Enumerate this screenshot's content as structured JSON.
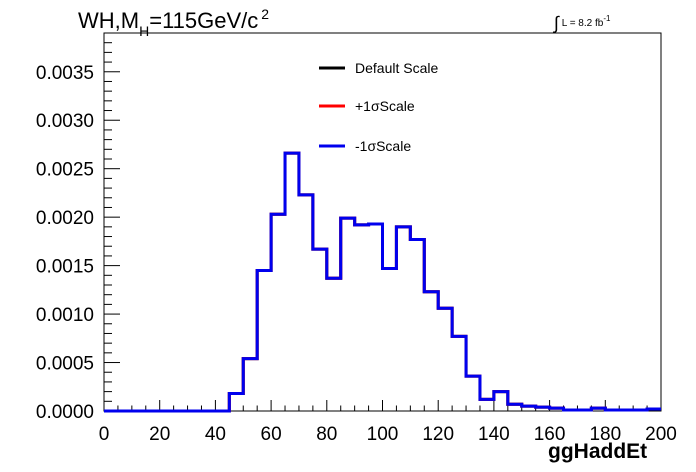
{
  "title": {
    "main": "WH,M",
    "sub": "H",
    "rest": "=115GeV/c",
    "sup": "2"
  },
  "lumi_text": {
    "integral": "∫",
    "text": "L = 8.2 fb",
    "sup": "-1"
  },
  "chart_data": {
    "type": "histogram",
    "xlabel": "ggHaddEt",
    "xlim": [
      0,
      200
    ],
    "ylim": [
      0,
      0.0039
    ],
    "bin_width": 5,
    "x_ticks": [
      "0",
      "20",
      "40",
      "60",
      "80",
      "100",
      "120",
      "140",
      "160",
      "180",
      "200"
    ],
    "y_ticks": [
      "0.0000",
      "0.0005",
      "0.0010",
      "0.0015",
      "0.0020",
      "0.0025",
      "0.0030",
      "0.0035"
    ],
    "legend_position": "top-center",
    "grid": false,
    "series": [
      {
        "name": "Default Scale",
        "color": "#000000",
        "values": [
          0,
          0,
          0,
          0,
          0,
          0,
          0,
          0,
          0,
          0.00018,
          0.00054,
          0.00145,
          0.00203,
          0.00266,
          0.00223,
          0.00167,
          0.00137,
          0.00199,
          0.00192,
          0.00193,
          0.00147,
          0.0019,
          0.00177,
          0.00123,
          0.00106,
          0.00077,
          0.00036,
          0.00012,
          0.0002,
          7e-05,
          5e-05,
          4e-05,
          3e-05,
          1e-05,
          1e-05,
          3e-05,
          1e-05,
          1e-05,
          1e-05,
          2e-05
        ]
      },
      {
        "name": "+1σScale",
        "color": "#ff0000",
        "values": [
          0,
          0,
          0,
          0,
          0,
          0,
          0,
          0,
          0,
          0.00018,
          0.00054,
          0.00145,
          0.00203,
          0.00266,
          0.00223,
          0.00167,
          0.00137,
          0.00199,
          0.00192,
          0.00193,
          0.00147,
          0.0019,
          0.00177,
          0.00123,
          0.00106,
          0.00077,
          0.00036,
          0.00012,
          0.0002,
          7e-05,
          5e-05,
          4e-05,
          3e-05,
          1e-05,
          1e-05,
          3e-05,
          1e-05,
          1e-05,
          1e-05,
          2e-05
        ]
      },
      {
        "name": "-1σScale",
        "color": "#0000ee",
        "values": [
          0,
          0,
          0,
          0,
          0,
          0,
          0,
          0,
          0,
          0.00018,
          0.00054,
          0.00145,
          0.00203,
          0.00266,
          0.00223,
          0.00167,
          0.00137,
          0.00199,
          0.00192,
          0.00193,
          0.00147,
          0.0019,
          0.00177,
          0.00123,
          0.00106,
          0.00077,
          0.00036,
          0.00012,
          0.0002,
          7e-05,
          5e-05,
          4e-05,
          3e-05,
          1e-05,
          1e-05,
          3e-05,
          1e-05,
          1e-05,
          1e-05,
          2e-05
        ]
      }
    ]
  }
}
